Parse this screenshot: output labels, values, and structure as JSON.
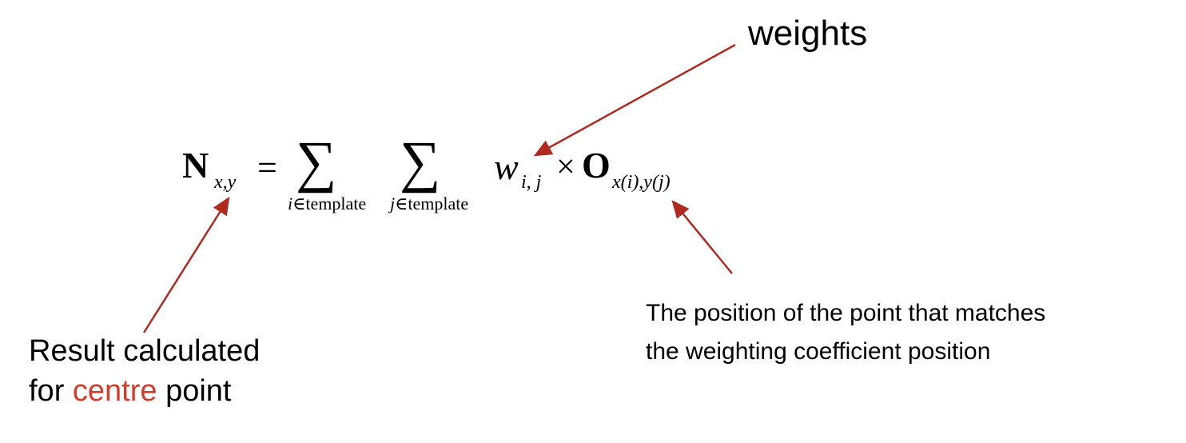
{
  "labels": {
    "weights": "weights",
    "result_line1": "Result calculated",
    "result_line2_prefix": "for ",
    "result_line2_accent": "centre",
    "result_line2_suffix": " point",
    "position_line1": "The position of the point that matches",
    "position_line2": "the weighting coefficient position"
  },
  "formula": {
    "N": "N",
    "N_sub": "x,y",
    "equals": "=",
    "sum_symbol": "∑",
    "sum1_sub_var": "i",
    "sum1_sub_rest": "∈template",
    "sum2_sub_var": "j",
    "sum2_sub_rest": "∈template",
    "w": "w",
    "w_sub": "i, j",
    "times": "×",
    "O": "O",
    "O_sub": "x(i),y(j)"
  },
  "colors": {
    "arrow": "#b02a20",
    "accent_text": "#d63a2a",
    "text": "#000000",
    "background": "#ffffff"
  }
}
